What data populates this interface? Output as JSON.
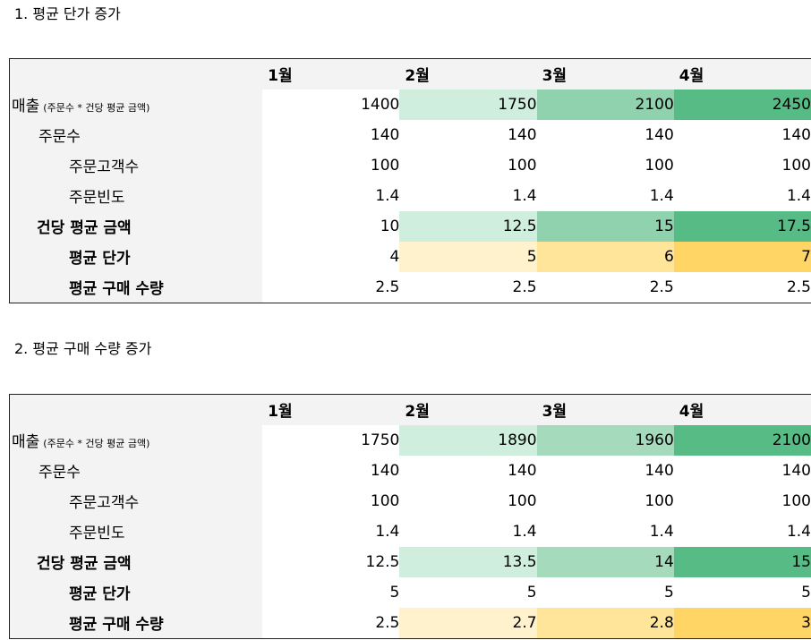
{
  "sections": [
    {
      "title": "1. 평균 단가 증가",
      "months": [
        "1월",
        "2월",
        "3월",
        "4월"
      ],
      "rows": [
        {
          "label": "매출",
          "note": "(주문수 * 건당 평균 금액)",
          "values": [
            "1400",
            "1750",
            "2100",
            "2450"
          ],
          "colors": [
            "#ffffff",
            "#cfeedd",
            "#90d2ae",
            "#57bb85"
          ]
        },
        {
          "label": "주문수",
          "values": [
            "140",
            "140",
            "140",
            "140"
          ]
        },
        {
          "label": "주문고객수",
          "values": [
            "100",
            "100",
            "100",
            "100"
          ]
        },
        {
          "label": "주문빈도",
          "values": [
            "1.4",
            "1.4",
            "1.4",
            "1.4"
          ]
        },
        {
          "label": "건당 평균 금액",
          "values": [
            "10",
            "12.5",
            "15",
            "17.5"
          ],
          "colors": [
            "#ffffff",
            "#cfeedd",
            "#90d2ae",
            "#57bb85"
          ]
        },
        {
          "label": "평균 단가",
          "values": [
            "4",
            "5",
            "6",
            "7"
          ],
          "colors": [
            "#ffffff",
            "#fff2cc",
            "#ffe599",
            "#ffd666"
          ]
        },
        {
          "label": "평균 구매 수량",
          "values": [
            "2.5",
            "2.5",
            "2.5",
            "2.5"
          ]
        }
      ]
    },
    {
      "title": "2. 평균 구매 수량 증가",
      "months": [
        "1월",
        "2월",
        "3월",
        "4월"
      ],
      "rows": [
        {
          "label": "매출",
          "note": "(주문수 * 건당 평균 금액)",
          "values": [
            "1750",
            "1890",
            "1960",
            "2100"
          ],
          "colors": [
            "#ffffff",
            "#cfeedd",
            "#a5dbbc",
            "#57bb85"
          ]
        },
        {
          "label": "주문수",
          "values": [
            "140",
            "140",
            "140",
            "140"
          ]
        },
        {
          "label": "주문고객수",
          "values": [
            "100",
            "100",
            "100",
            "100"
          ]
        },
        {
          "label": "주문빈도",
          "values": [
            "1.4",
            "1.4",
            "1.4",
            "1.4"
          ]
        },
        {
          "label": "건당 평균 금액",
          "values": [
            "12.5",
            "13.5",
            "14",
            "15"
          ],
          "colors": [
            "#ffffff",
            "#cfeedd",
            "#a5dbbc",
            "#57bb85"
          ]
        },
        {
          "label": "평균 단가",
          "values": [
            "5",
            "5",
            "5",
            "5"
          ]
        },
        {
          "label": "평균 구매 수량",
          "values": [
            "2.5",
            "2.7",
            "2.8",
            "3"
          ],
          "colors": [
            "#ffffff",
            "#fff2cc",
            "#ffe599",
            "#ffd666"
          ]
        }
      ]
    }
  ]
}
